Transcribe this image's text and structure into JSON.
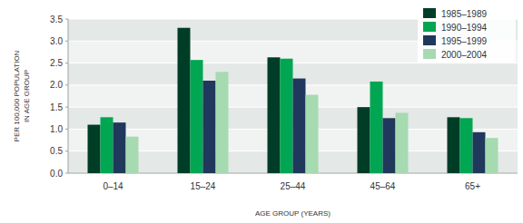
{
  "chart_data": {
    "type": "bar",
    "categories": [
      "0–14",
      "15–24",
      "25–44",
      "45–64",
      "65+"
    ],
    "series": [
      {
        "name": "1985–1989",
        "color": "#003d27",
        "values": [
          1.1,
          3.3,
          2.63,
          1.5,
          1.27
        ]
      },
      {
        "name": "1990–1994",
        "color": "#00a651",
        "values": [
          1.27,
          2.57,
          2.6,
          2.08,
          1.25
        ]
      },
      {
        "name": "1995–1999",
        "color": "#20385c",
        "values": [
          1.15,
          2.1,
          2.15,
          1.25,
          0.93
        ]
      },
      {
        "name": "2000–2004",
        "color": "#a6dab1",
        "values": [
          0.83,
          2.3,
          1.78,
          1.37,
          0.8
        ]
      }
    ],
    "x_label": "AGE GROUP (YEARS)",
    "y_label": "PER 100,000 POPULATION IN AGE GROUP",
    "ylim": [
      0,
      3.5
    ],
    "yticks": [
      {
        "value": 0,
        "label": "0.0"
      },
      0.5,
      {
        "value": 1,
        "label": "1.0"
      },
      1.5,
      {
        "value": 2,
        "label": "2.0"
      },
      2.5,
      {
        "value": 3,
        "label": "3.0"
      },
      3.5
    ],
    "grid": true,
    "legend": "top-right"
  }
}
